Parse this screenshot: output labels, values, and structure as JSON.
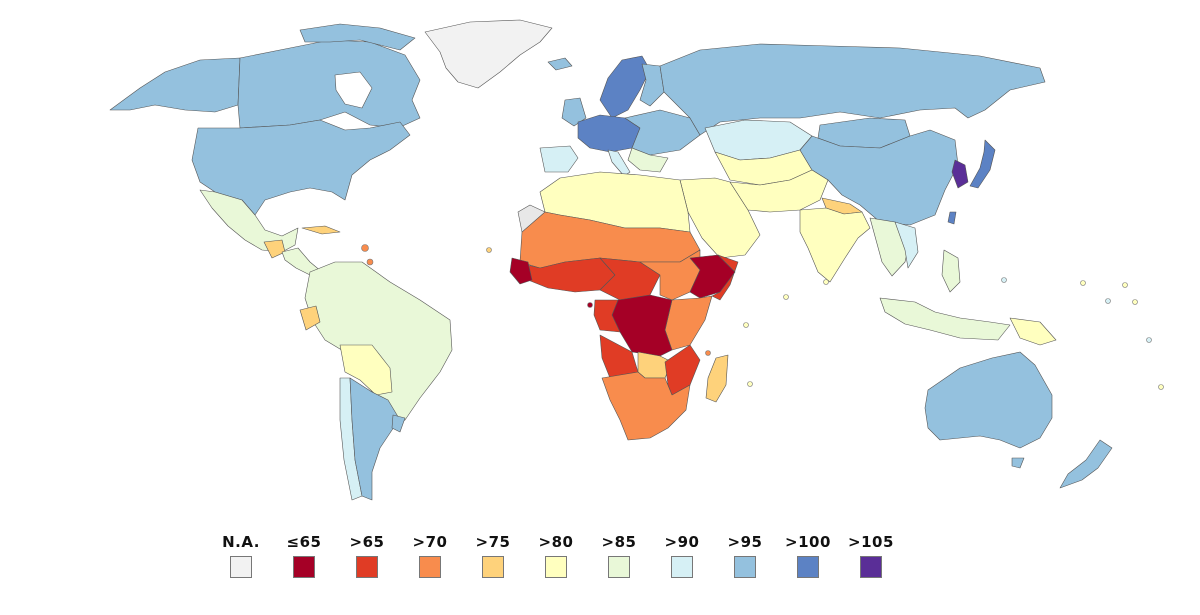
{
  "legend": {
    "items": [
      {
        "label": "N.A.",
        "color": "#f2f2f2"
      },
      {
        "label": "≤65",
        "color": "#a50026"
      },
      {
        "label": ">65",
        "color": "#e03c25"
      },
      {
        "label": ">70",
        "color": "#f88c4d"
      },
      {
        "label": ">75",
        "color": "#fed27b"
      },
      {
        "label": ">80",
        "color": "#ffffbf"
      },
      {
        "label": ">85",
        "color": "#e9f8d8"
      },
      {
        "label": ">90",
        "color": "#d6f0f5"
      },
      {
        "label": ">95",
        "color": "#94c1de"
      },
      {
        "label": ">100",
        "color": "#5c82c4"
      },
      {
        "label": ">105",
        "color": "#5a2e97"
      }
    ]
  },
  "regions": [
    {
      "name": "greenland",
      "class": "N.A."
    },
    {
      "name": "canada",
      "class": ">95"
    },
    {
      "name": "usa",
      "class": ">95"
    },
    {
      "name": "alaska",
      "class": ">95"
    },
    {
      "name": "mexico",
      "class": ">85"
    },
    {
      "name": "central-america",
      "class": ">85"
    },
    {
      "name": "guatemala",
      "class": ">75"
    },
    {
      "name": "caribbean",
      "class": ">75"
    },
    {
      "name": "south-america",
      "class": ">85"
    },
    {
      "name": "ecuador",
      "class": ">75"
    },
    {
      "name": "bolivia-paraguay",
      "class": ">80"
    },
    {
      "name": "chile",
      "class": ">90"
    },
    {
      "name": "argentina",
      "class": ">95"
    },
    {
      "name": "uruguay",
      "class": ">95"
    },
    {
      "name": "europe-west",
      "class": ">95"
    },
    {
      "name": "scandinavia",
      "class": ">100"
    },
    {
      "name": "central-europe",
      "class": ">100"
    },
    {
      "name": "iceland",
      "class": ">95"
    },
    {
      "name": "uk-ireland",
      "class": ">95"
    },
    {
      "name": "iberia",
      "class": ">90"
    },
    {
      "name": "balkans",
      "class": ">85"
    },
    {
      "name": "russia",
      "class": ">95"
    },
    {
      "name": "kazakhstan-central-asia",
      "class": ">90"
    },
    {
      "name": "china",
      "class": ">95"
    },
    {
      "name": "mongolia",
      "class": ">95"
    },
    {
      "name": "korea",
      "class": ">105"
    },
    {
      "name": "japan",
      "class": ">100"
    },
    {
      "name": "taiwan",
      "class": ">100"
    },
    {
      "name": "north-africa",
      "class": ">80"
    },
    {
      "name": "middle-east",
      "class": ">80"
    },
    {
      "name": "iran-pakistan",
      "class": ">80"
    },
    {
      "name": "india",
      "class": ">80"
    },
    {
      "name": "nepal",
      "class": ">75"
    },
    {
      "name": "southeast-asia",
      "class": ">85"
    },
    {
      "name": "vietnam",
      "class": ">90"
    },
    {
      "name": "indonesia",
      "class": ">85"
    },
    {
      "name": "philippines",
      "class": ">85"
    },
    {
      "name": "papua",
      "class": ">80"
    },
    {
      "name": "west-sahara",
      "class": "N.A."
    },
    {
      "name": "sahel",
      "class": ">70"
    },
    {
      "name": "west-africa",
      "class": ">65"
    },
    {
      "name": "sierra-leone",
      "class": "≤65"
    },
    {
      "name": "central-africa",
      "class": ">65"
    },
    {
      "name": "sudan",
      "class": ">70"
    },
    {
      "name": "ethiopia",
      "class": "≤65"
    },
    {
      "name": "somalia",
      "class": ">65"
    },
    {
      "name": "east-africa",
      "class": ">70"
    },
    {
      "name": "drc",
      "class": "≤65"
    },
    {
      "name": "angola",
      "class": ">65"
    },
    {
      "name": "zambia",
      "class": ">75"
    },
    {
      "name": "mozambique",
      "class": ">65"
    },
    {
      "name": "southern-africa",
      "class": ">70"
    },
    {
      "name": "madagascar",
      "class": ">75"
    },
    {
      "name": "australia",
      "class": ">95"
    },
    {
      "name": "new-zealand",
      "class": ">95"
    }
  ]
}
